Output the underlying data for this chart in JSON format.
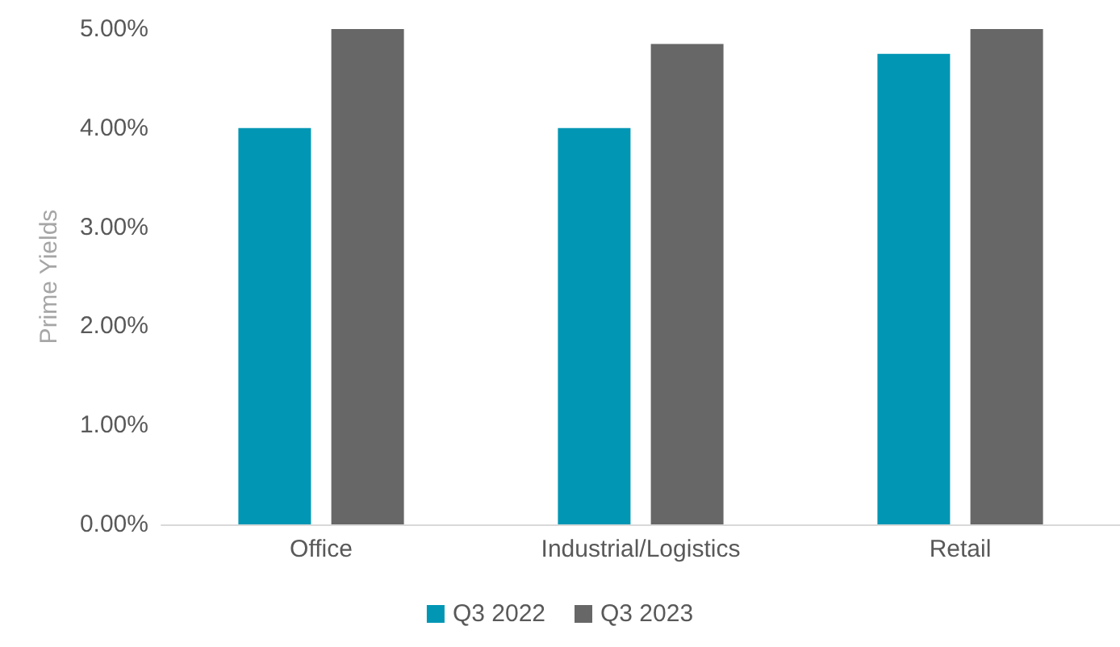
{
  "chart_data": {
    "type": "bar",
    "ylabel": "Prime Yields",
    "categories": [
      "Office",
      "Industrial/Logistics",
      "Retail"
    ],
    "series": [
      {
        "name": "Q3 2022",
        "color": "#0096b4",
        "values": [
          4.0,
          4.0,
          4.75
        ]
      },
      {
        "name": "Q3 2023",
        "color": "#666766",
        "values": [
          5.0,
          4.85,
          5.0
        ]
      }
    ],
    "ylim": [
      0,
      5
    ],
    "yticks": [
      {
        "value": 0,
        "label": "0.00%"
      },
      {
        "value": 1,
        "label": "1.00%"
      },
      {
        "value": 2,
        "label": "2.00%"
      },
      {
        "value": 3,
        "label": "3.00%"
      },
      {
        "value": 4,
        "label": "4.00%"
      },
      {
        "value": 5,
        "label": "5.00%"
      }
    ],
    "grid": false,
    "legend": "bottom"
  }
}
